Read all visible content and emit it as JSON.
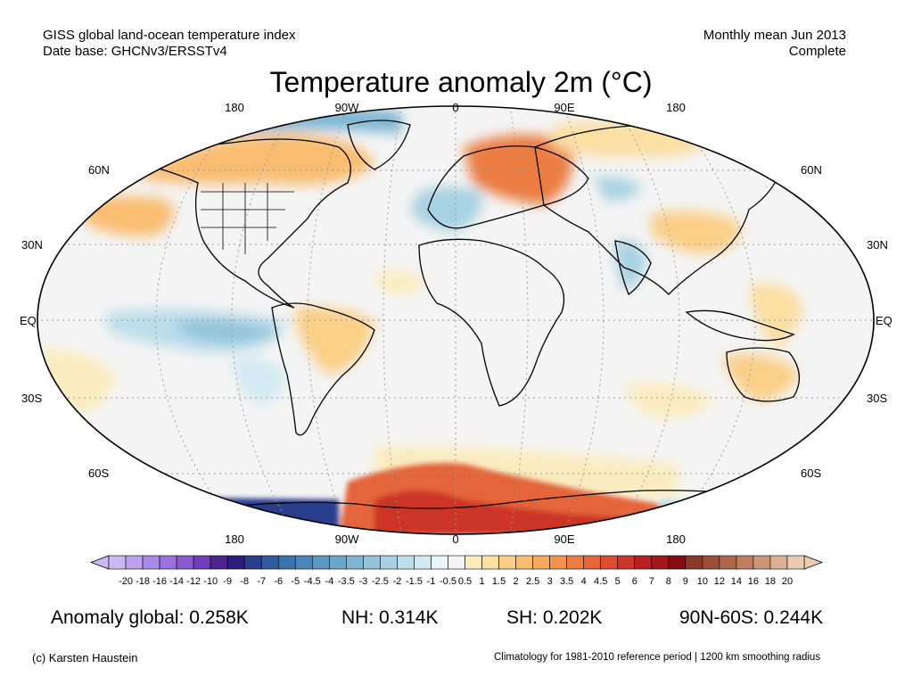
{
  "header": {
    "line1": "GISS global land-ocean temperature index",
    "line2": "Date base: GHCNv3/ERSSTv4",
    "right1": "Monthly mean Jun 2013",
    "right2": "Complete"
  },
  "title": "Temperature anomaly 2m (°C)",
  "map": {
    "projection": "Robinson",
    "lon_labels": [
      "180",
      "90W",
      "0",
      "90E",
      "180"
    ],
    "lat_labels": [
      "60N",
      "30N",
      "EQ",
      "30S",
      "60S"
    ]
  },
  "colorbar": {
    "labels": [
      "-20",
      "-18",
      "-16",
      "-14",
      "-12",
      "-10",
      "-9",
      "-8",
      "-7",
      "-6",
      "-5",
      "-4.5",
      "-4",
      "-3.5",
      "-3",
      "-2.5",
      "-2",
      "-1.5",
      "-1",
      "-0.5",
      "0.5",
      "1",
      "1.5",
      "2",
      "2.5",
      "3",
      "3.5",
      "4",
      "4.5",
      "5",
      "6",
      "7",
      "8",
      "9",
      "10",
      "12",
      "14",
      "16",
      "18",
      "20"
    ],
    "colors": [
      "#c9b8f4",
      "#b9a2ee",
      "#a98ae6",
      "#9b72dc",
      "#8a58cf",
      "#6f3cba",
      "#4d2591",
      "#2c1d7a",
      "#2b3d8d",
      "#2e5c9e",
      "#3a74ae",
      "#4a86b9",
      "#5b96c2",
      "#6ba6cb",
      "#7eb5d3",
      "#92c3da",
      "#a6d1e2",
      "#bcdeeb",
      "#d2ebf3",
      "#e8f5f9",
      "#f4f4f4",
      "#fbecc0",
      "#fbdfa3",
      "#fbcf87",
      "#f9bd71",
      "#f6a95d",
      "#f2944e",
      "#ec7d43",
      "#e4653a",
      "#db4c31",
      "#cc3528",
      "#b82220",
      "#a01818",
      "#840d10",
      "#8a3a2a",
      "#9c4f38",
      "#ad6649",
      "#be7e5e",
      "#cd9777",
      "#dcb192",
      "#ecccb0"
    ]
  },
  "stats": {
    "global": "Anomaly global: 0.258K",
    "nh": "NH: 0.314K",
    "sh": "SH: 0.202K",
    "n90_60s": "90N-60S: 0.244K"
  },
  "footer": {
    "credit": "(c) Karsten Haustein",
    "climatology": "Climatology for 1981-2010 reference period | 1200 km smoothing radius"
  }
}
